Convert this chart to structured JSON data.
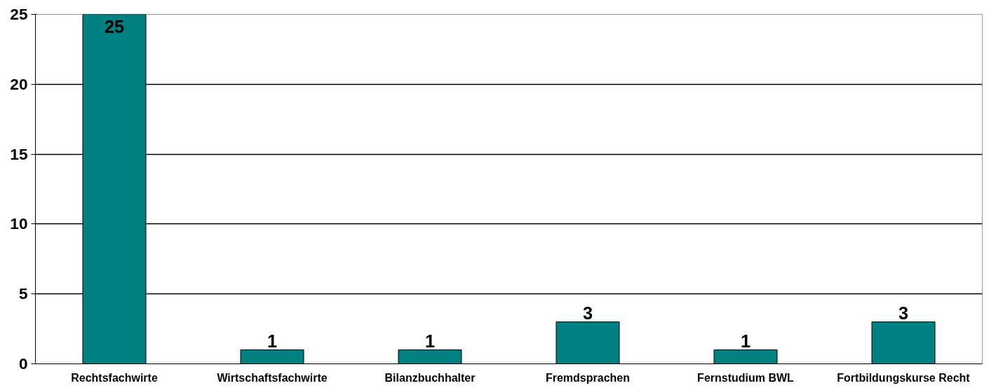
{
  "chart_data": {
    "type": "bar",
    "categories": [
      "Rechtsfachwirte",
      "Wirtschaftsfachwirte",
      "Bilanzbuchhalter",
      "Fremdsprachen",
      "Fernstudium BWL",
      "Fortbildungskurse Recht"
    ],
    "values": [
      25,
      1,
      1,
      3,
      1,
      3
    ],
    "color": "#008080",
    "ylim": [
      0,
      25
    ],
    "yticks": [
      0,
      5,
      10,
      15,
      20,
      25
    ],
    "grid": "y",
    "data_labels": true
  }
}
